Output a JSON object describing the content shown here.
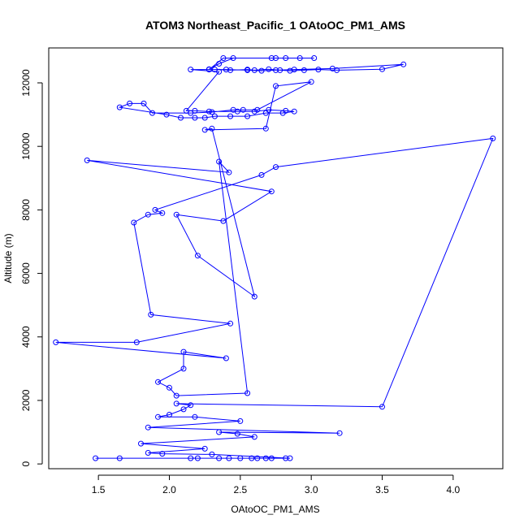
{
  "chart_data": {
    "type": "line",
    "title": "ATOM3 Northeast_Pacific_1 OAtoOC_PM1_AMS",
    "xlabel": "OAtoOC_PM1_AMS",
    "ylabel": "Altitude (m)",
    "xlim": [
      1.15,
      4.35
    ],
    "ylim": [
      -150,
      13100
    ],
    "xticks": [
      1.5,
      2.0,
      2.5,
      3.0,
      3.5,
      4.0
    ],
    "yticks": [
      0,
      2000,
      4000,
      6000,
      8000,
      10000,
      12000
    ],
    "x_tick_labels": [
      "1.5",
      "2.0",
      "2.5",
      "3.0",
      "3.5",
      "4.0"
    ],
    "y_tick_labels": [
      "0",
      "2000",
      "4000",
      "6000",
      "8000",
      "10000",
      "12000"
    ],
    "grid": false,
    "legend": "none",
    "color": "#0000ff",
    "marker": "open-circle",
    "series": [
      {
        "points": [
          [
            1.48,
            180
          ],
          [
            1.65,
            180
          ],
          [
            2.15,
            180
          ],
          [
            2.2,
            180
          ],
          [
            2.35,
            180
          ],
          [
            2.42,
            180
          ],
          [
            2.5,
            180
          ],
          [
            2.58,
            180
          ],
          [
            2.62,
            180
          ],
          [
            2.68,
            180
          ],
          [
            2.72,
            180
          ],
          [
            2.82,
            180
          ],
          [
            2.85,
            180
          ],
          [
            2.3,
            300
          ],
          [
            1.95,
            320
          ],
          [
            1.85,
            350
          ],
          [
            2.25,
            480
          ],
          [
            1.8,
            640
          ],
          [
            2.6,
            850
          ],
          [
            2.48,
            950
          ],
          [
            2.35,
            1000
          ],
          [
            3.2,
            970
          ],
          [
            1.85,
            1150
          ],
          [
            2.5,
            1350
          ],
          [
            2.18,
            1480
          ],
          [
            1.92,
            1480
          ],
          [
            2.0,
            1550
          ],
          [
            2.1,
            1720
          ],
          [
            2.15,
            1850
          ],
          [
            2.05,
            1900
          ],
          [
            3.5,
            1800
          ],
          [
            4.28,
            10250
          ],
          [
            2.75,
            9350
          ],
          [
            2.65,
            9100
          ],
          [
            1.9,
            8000
          ],
          [
            1.95,
            7900
          ],
          [
            1.85,
            7850
          ],
          [
            1.75,
            7600
          ],
          [
            1.87,
            4700
          ],
          [
            2.43,
            4420
          ],
          [
            1.77,
            3830
          ],
          [
            1.2,
            3830
          ],
          [
            2.4,
            3330
          ],
          [
            2.1,
            3530
          ],
          [
            2.1,
            3000
          ],
          [
            1.92,
            2580
          ],
          [
            2.0,
            2400
          ],
          [
            2.05,
            2150
          ],
          [
            2.55,
            2230
          ],
          [
            2.35,
            9520
          ],
          [
            2.42,
            9180
          ],
          [
            1.42,
            9560
          ],
          [
            2.72,
            8580
          ],
          [
            2.38,
            7650
          ],
          [
            2.05,
            7850
          ],
          [
            2.2,
            6560
          ],
          [
            2.6,
            5270
          ],
          [
            2.3,
            10560
          ],
          [
            2.25,
            10520
          ],
          [
            2.68,
            10560
          ],
          [
            2.75,
            11900
          ],
          [
            3.0,
            12030
          ],
          [
            2.62,
            11150
          ],
          [
            2.52,
            11150
          ],
          [
            2.45,
            11150
          ],
          [
            2.3,
            11080
          ],
          [
            2.15,
            11050
          ],
          [
            1.88,
            11050
          ],
          [
            1.82,
            11350
          ],
          [
            1.72,
            11350
          ],
          [
            1.65,
            11230
          ],
          [
            1.98,
            11000
          ],
          [
            2.08,
            10900
          ],
          [
            2.18,
            10900
          ],
          [
            2.25,
            10900
          ],
          [
            2.32,
            10950
          ],
          [
            2.43,
            10950
          ],
          [
            2.55,
            10950
          ],
          [
            2.68,
            11050
          ],
          [
            2.8,
            11050
          ],
          [
            2.88,
            11100
          ],
          [
            2.82,
            11120
          ],
          [
            2.7,
            11150
          ],
          [
            2.6,
            11100
          ],
          [
            2.48,
            11100
          ],
          [
            2.28,
            11100
          ],
          [
            2.18,
            11120
          ],
          [
            2.12,
            11120
          ],
          [
            2.35,
            12350
          ],
          [
            2.15,
            12420
          ],
          [
            2.32,
            12420
          ],
          [
            2.43,
            12400
          ],
          [
            2.55,
            12420
          ],
          [
            2.6,
            12400
          ],
          [
            2.7,
            12430
          ],
          [
            2.78,
            12400
          ],
          [
            2.85,
            12380
          ],
          [
            2.95,
            12400
          ],
          [
            3.05,
            12420
          ],
          [
            3.18,
            12400
          ],
          [
            3.5,
            12430
          ],
          [
            3.65,
            12580
          ],
          [
            3.15,
            12450
          ],
          [
            2.88,
            12420
          ],
          [
            2.75,
            12400
          ],
          [
            2.65,
            12380
          ],
          [
            2.55,
            12400
          ],
          [
            2.4,
            12420
          ],
          [
            2.28,
            12420
          ],
          [
            2.38,
            12780
          ],
          [
            2.72,
            12780
          ],
          [
            2.82,
            12780
          ],
          [
            2.92,
            12780
          ],
          [
            3.02,
            12780
          ],
          [
            2.75,
            12780
          ],
          [
            2.45,
            12780
          ],
          [
            2.35,
            12600
          ],
          [
            2.28,
            12430
          ]
        ]
      }
    ]
  }
}
